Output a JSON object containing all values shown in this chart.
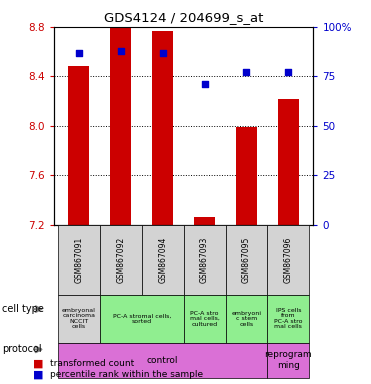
{
  "title": "GDS4124 / 204699_s_at",
  "samples": [
    "GSM867091",
    "GSM867092",
    "GSM867094",
    "GSM867093",
    "GSM867095",
    "GSM867096"
  ],
  "transformed_counts": [
    8.48,
    8.79,
    8.77,
    7.26,
    7.99,
    8.22
  ],
  "percentile_ranks": [
    87,
    88,
    87,
    71,
    77,
    77
  ],
  "ylim_left": [
    7.2,
    8.8
  ],
  "ylim_right": [
    0,
    100
  ],
  "yticks_left": [
    7.2,
    7.6,
    8.0,
    8.4,
    8.8
  ],
  "yticks_right": [
    0,
    25,
    50,
    75,
    100
  ],
  "bar_color": "#cc0000",
  "dot_color": "#0000cc",
  "bar_width": 0.5,
  "bar_bottom": 7.2,
  "cell_type_groups": [
    [
      0
    ],
    [
      1,
      2
    ],
    [
      3
    ],
    [
      4
    ],
    [
      5
    ]
  ],
  "cell_type_labels": [
    "embryonal\ncarcinoma\nNCCIT\ncells",
    "PC-A stromal cells,\nsorted",
    "PC-A stro\nmal cells,\ncultured",
    "embryoni\nc stem\ncells",
    "IPS cells\nfrom\nPC-A stro\nmal cells"
  ],
  "cell_type_colors": [
    "#d3d3d3",
    "#90ee90",
    "#90ee90",
    "#90ee90",
    "#90ee90"
  ],
  "protocol_groups": [
    [
      0,
      1,
      2,
      3,
      4
    ],
    [
      5
    ]
  ],
  "protocol_labels": [
    "control",
    "reprogram\nming"
  ],
  "protocol_color": "#da70d6",
  "grid_color": "black",
  "left_label_color": "#cc0000",
  "right_label_color": "#0000cc",
  "bg_color": "white",
  "legend_items": [
    "transformed count",
    "percentile rank within the sample"
  ]
}
